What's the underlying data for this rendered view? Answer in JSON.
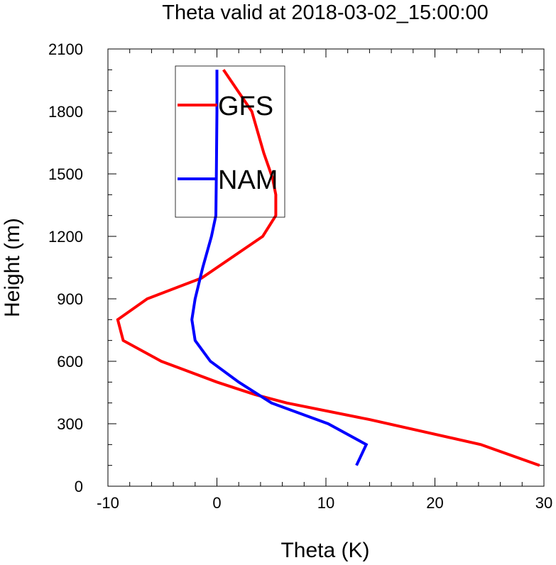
{
  "chart_data": {
    "type": "line",
    "title": "Theta valid at 2018-03-02_15:00:00",
    "xlabel": "Theta (K)",
    "ylabel": "Height (m)",
    "xlim": [
      -10,
      30
    ],
    "ylim": [
      0,
      2100
    ],
    "x_ticks": [
      -10,
      0,
      10,
      20,
      30
    ],
    "x_tick_labels": [
      "-10",
      "0",
      "10",
      "20",
      "30"
    ],
    "y_ticks": [
      0,
      300,
      600,
      900,
      1200,
      1500,
      1800,
      2100
    ],
    "y_tick_labels": [
      "0",
      "300",
      "600",
      "900",
      "1200",
      "1500",
      "1800",
      "2100"
    ],
    "legend_position": "top-left inside",
    "grid": false,
    "series": [
      {
        "name": "GFS",
        "color": "#ff0000",
        "points": [
          [
            29.6,
            100
          ],
          [
            24.2,
            200
          ],
          [
            14,
            320
          ],
          [
            6.4,
            400
          ],
          [
            3.5,
            440
          ],
          [
            0,
            500
          ],
          [
            -5.1,
            600
          ],
          [
            -8.6,
            700
          ],
          [
            -9.1,
            800
          ],
          [
            -6.4,
            900
          ],
          [
            -1.4,
            1000
          ],
          [
            4.2,
            1200
          ],
          [
            5.4,
            1300
          ],
          [
            5.4,
            1400
          ],
          [
            5.1,
            1480
          ],
          [
            4.3,
            1600
          ],
          [
            3.2,
            1800
          ],
          [
            0.6,
            2000
          ]
        ]
      },
      {
        "name": "NAM",
        "color": "#0000ff",
        "points": [
          [
            12.8,
            100
          ],
          [
            13.7,
            200
          ],
          [
            10.2,
            300
          ],
          [
            5,
            400
          ],
          [
            2,
            500
          ],
          [
            -0.6,
            600
          ],
          [
            -2,
            700
          ],
          [
            -2.3,
            800
          ],
          [
            -2,
            900
          ],
          [
            -1.3,
            1050
          ],
          [
            -0.5,
            1200
          ],
          [
            -0.1,
            1300
          ],
          [
            -0.05,
            1500
          ],
          [
            0,
            1800
          ],
          [
            0,
            2000
          ]
        ]
      }
    ]
  }
}
